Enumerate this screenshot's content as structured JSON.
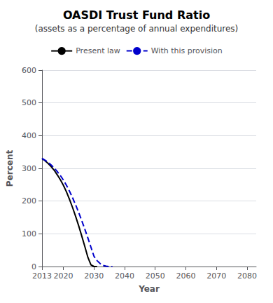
{
  "chart_data": {
    "type": "line",
    "title": "OASDI Trust Fund Ratio",
    "subtitle": "(assets as a percentage of annual expenditures)",
    "xlabel": "Year",
    "ylabel": "Percent",
    "xlim": [
      2013,
      2083
    ],
    "xticks": [
      2013,
      2020,
      2030,
      2040,
      2050,
      2060,
      2070,
      2080
    ],
    "ylim": [
      0,
      600
    ],
    "yticks": [
      0,
      100,
      200,
      300,
      400,
      500,
      600
    ],
    "grid": true,
    "legend": "top",
    "series": [
      {
        "name": "Present law",
        "color": "#000000",
        "line_style": "solid",
        "x": [
          2013,
          2014,
          2015,
          2016,
          2017,
          2018,
          2019,
          2020,
          2021,
          2022,
          2023,
          2024,
          2025,
          2026,
          2027,
          2028,
          2029,
          2030,
          2031
        ],
        "values": [
          330,
          323,
          315,
          305,
          294,
          280,
          265,
          248,
          228,
          205,
          180,
          153,
          124,
          93,
          61,
          28,
          5,
          0,
          0
        ]
      },
      {
        "name": "With this provision",
        "color": "#0000cc",
        "line_style": "dashed",
        "x": [
          2013,
          2014,
          2015,
          2016,
          2017,
          2018,
          2019,
          2020,
          2021,
          2022,
          2023,
          2024,
          2025,
          2026,
          2027,
          2028,
          2029,
          2030,
          2031,
          2032,
          2033,
          2034,
          2035,
          2036
        ],
        "values": [
          330,
          325,
          318,
          310,
          301,
          290,
          278,
          264,
          248,
          230,
          210,
          188,
          165,
          140,
          114,
          87,
          59,
          31,
          18,
          9,
          3,
          1,
          0,
          0
        ]
      }
    ]
  }
}
